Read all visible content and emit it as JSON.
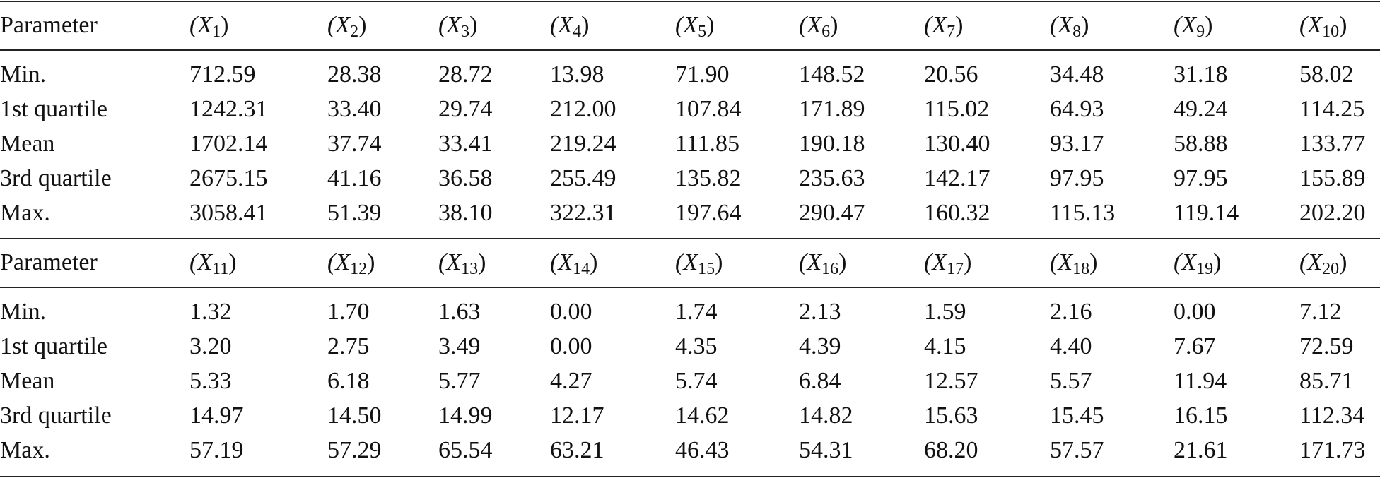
{
  "blocks": [
    {
      "header": {
        "label": "Parameter",
        "columns": [
          {
            "base": "(X",
            "sub": "1",
            "close": ")"
          },
          {
            "base": "(X",
            "sub": "2",
            "close": ")"
          },
          {
            "base": "(X",
            "sub": "3",
            "close": ")"
          },
          {
            "base": "(X",
            "sub": "4",
            "close": ")"
          },
          {
            "base": "(X",
            "sub": "5",
            "close": ")"
          },
          {
            "base": "(X",
            "sub": "6",
            "close": ")"
          },
          {
            "base": "(X",
            "sub": "7",
            "close": ")"
          },
          {
            "base": "(X",
            "sub": "8",
            "close": ")"
          },
          {
            "base": "(X",
            "sub": "9",
            "close": ")"
          },
          {
            "base": "(X",
            "sub": "10",
            "close": ")"
          }
        ]
      },
      "rows": [
        {
          "label": "Min.",
          "values": [
            "712.59",
            "28.38",
            "28.72",
            "13.98",
            "71.90",
            "148.52",
            "20.56",
            "34.48",
            "31.18",
            "58.02"
          ]
        },
        {
          "label": "1st quartile",
          "values": [
            "1242.31",
            "33.40",
            "29.74",
            "212.00",
            "107.84",
            "171.89",
            "115.02",
            "64.93",
            "49.24",
            "114.25"
          ]
        },
        {
          "label": "Mean",
          "values": [
            "1702.14",
            "37.74",
            "33.41",
            "219.24",
            "111.85",
            "190.18",
            "130.40",
            "93.17",
            "58.88",
            "133.77"
          ]
        },
        {
          "label": "3rd quartile",
          "values": [
            "2675.15",
            "41.16",
            "36.58",
            "255.49",
            "135.82",
            "235.63",
            "142.17",
            "97.95",
            "97.95",
            "155.89"
          ]
        },
        {
          "label": "Max.",
          "values": [
            "3058.41",
            "51.39",
            "38.10",
            "322.31",
            "197.64",
            "290.47",
            "160.32",
            "115.13",
            "119.14",
            "202.20"
          ]
        }
      ]
    },
    {
      "header": {
        "label": "Parameter",
        "columns": [
          {
            "base": "(X",
            "sub": "11",
            "close": ")"
          },
          {
            "base": "(X",
            "sub": "12",
            "close": ")"
          },
          {
            "base": "(X",
            "sub": "13",
            "close": ")"
          },
          {
            "base": "(X",
            "sub": "14",
            "close": ")"
          },
          {
            "base": "(X",
            "sub": "15",
            "close": ")"
          },
          {
            "base": "(X",
            "sub": "16",
            "close": ")"
          },
          {
            "base": "(X",
            "sub": "17",
            "close": ")"
          },
          {
            "base": "(X",
            "sub": "18",
            "close": ")"
          },
          {
            "base": "(X",
            "sub": "19",
            "close": ")"
          },
          {
            "base": "(X",
            "sub": "20",
            "close": ")"
          }
        ]
      },
      "rows": [
        {
          "label": "Min.",
          "values": [
            "1.32",
            "1.70",
            "1.63",
            "0.00",
            "1.74",
            "2.13",
            "1.59",
            "2.16",
            "0.00",
            "7.12"
          ]
        },
        {
          "label": "1st quartile",
          "values": [
            "3.20",
            "2.75",
            "3.49",
            "0.00",
            "4.35",
            "4.39",
            "4.15",
            "4.40",
            "7.67",
            "72.59"
          ]
        },
        {
          "label": "Mean",
          "values": [
            "5.33",
            "6.18",
            "5.77",
            "4.27",
            "5.74",
            "6.84",
            "12.57",
            "5.57",
            "11.94",
            "85.71"
          ]
        },
        {
          "label": "3rd quartile",
          "values": [
            "14.97",
            "14.50",
            "14.99",
            "12.17",
            "14.62",
            "14.82",
            "15.63",
            "15.45",
            "16.15",
            "112.34"
          ]
        },
        {
          "label": "Max.",
          "values": [
            "57.19",
            "57.29",
            "65.54",
            "63.21",
            "46.43",
            "54.31",
            "68.20",
            "57.57",
            "21.61",
            "171.73"
          ]
        }
      ]
    }
  ]
}
